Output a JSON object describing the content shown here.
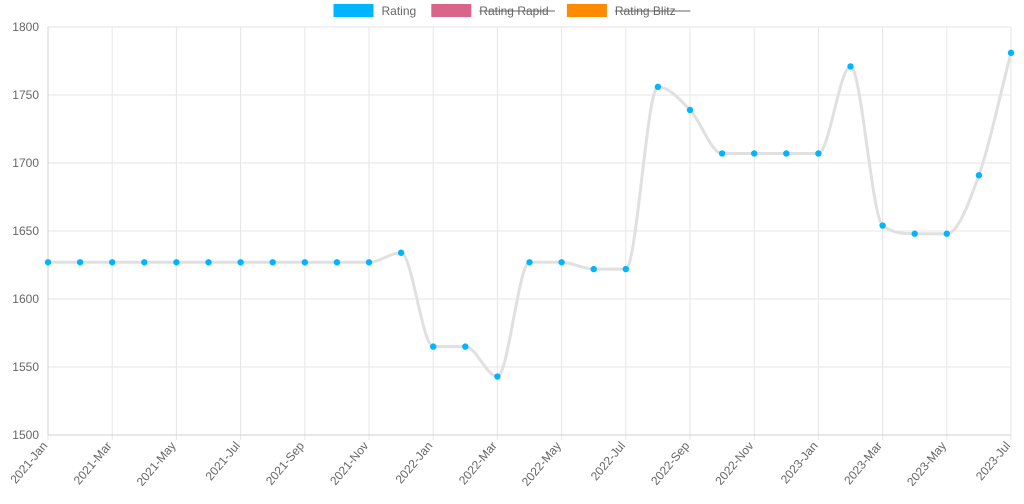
{
  "chart_data": {
    "type": "line",
    "title": "",
    "xlabel": "",
    "ylabel": "",
    "ylim": [
      1500,
      1800
    ],
    "yticks": [
      1500,
      1550,
      1600,
      1650,
      1700,
      1750,
      1800
    ],
    "grid": true,
    "legend_position": "top-center",
    "legend": [
      {
        "label": "Rating",
        "color": "#00b5ff",
        "hidden": false
      },
      {
        "label": "Rating Rapid",
        "color": "#d9668a",
        "hidden": true
      },
      {
        "label": "Rating Blitz",
        "color": "#ff8a00",
        "hidden": true
      }
    ],
    "categories": [
      "2021-Jan",
      "2021-Feb",
      "2021-Mar",
      "2021-Apr",
      "2021-May",
      "2021-Jun",
      "2021-Jul",
      "2021-Aug",
      "2021-Sep",
      "2021-Oct",
      "2021-Nov",
      "2021-Dec",
      "2022-Jan",
      "2022-Feb",
      "2022-Mar",
      "2022-Apr",
      "2022-May",
      "2022-Jun",
      "2022-Jul",
      "2022-Aug",
      "2022-Sep",
      "2022-Oct",
      "2022-Nov",
      "2022-Dec",
      "2023-Jan",
      "2023-Feb",
      "2023-Mar",
      "2023-Apr",
      "2023-May",
      "2023-Jun",
      "2023-Jul"
    ],
    "tick_labels": [
      "2021-Jan",
      "2021-Mar",
      "2021-May",
      "2021-Jul",
      "2021-Sep",
      "2021-Nov",
      "2022-Jan",
      "2022-Mar",
      "2022-May",
      "2022-Jul",
      "2022-Sep",
      "2022-Nov",
      "2023-Jan",
      "2023-Mar",
      "2023-May",
      "2023-Jul"
    ],
    "series": [
      {
        "name": "Rating",
        "color": "#00b5ff",
        "line_color": "#e0e0e0",
        "values": [
          1627,
          1627,
          1627,
          1627,
          1627,
          1627,
          1627,
          1627,
          1627,
          1627,
          1627,
          1634,
          1565,
          1565,
          1543,
          1627,
          1627,
          1622,
          1622,
          1756,
          1739,
          1707,
          1707,
          1707,
          1707,
          1771,
          1654,
          1648,
          1648,
          1691,
          1781
        ]
      }
    ]
  }
}
